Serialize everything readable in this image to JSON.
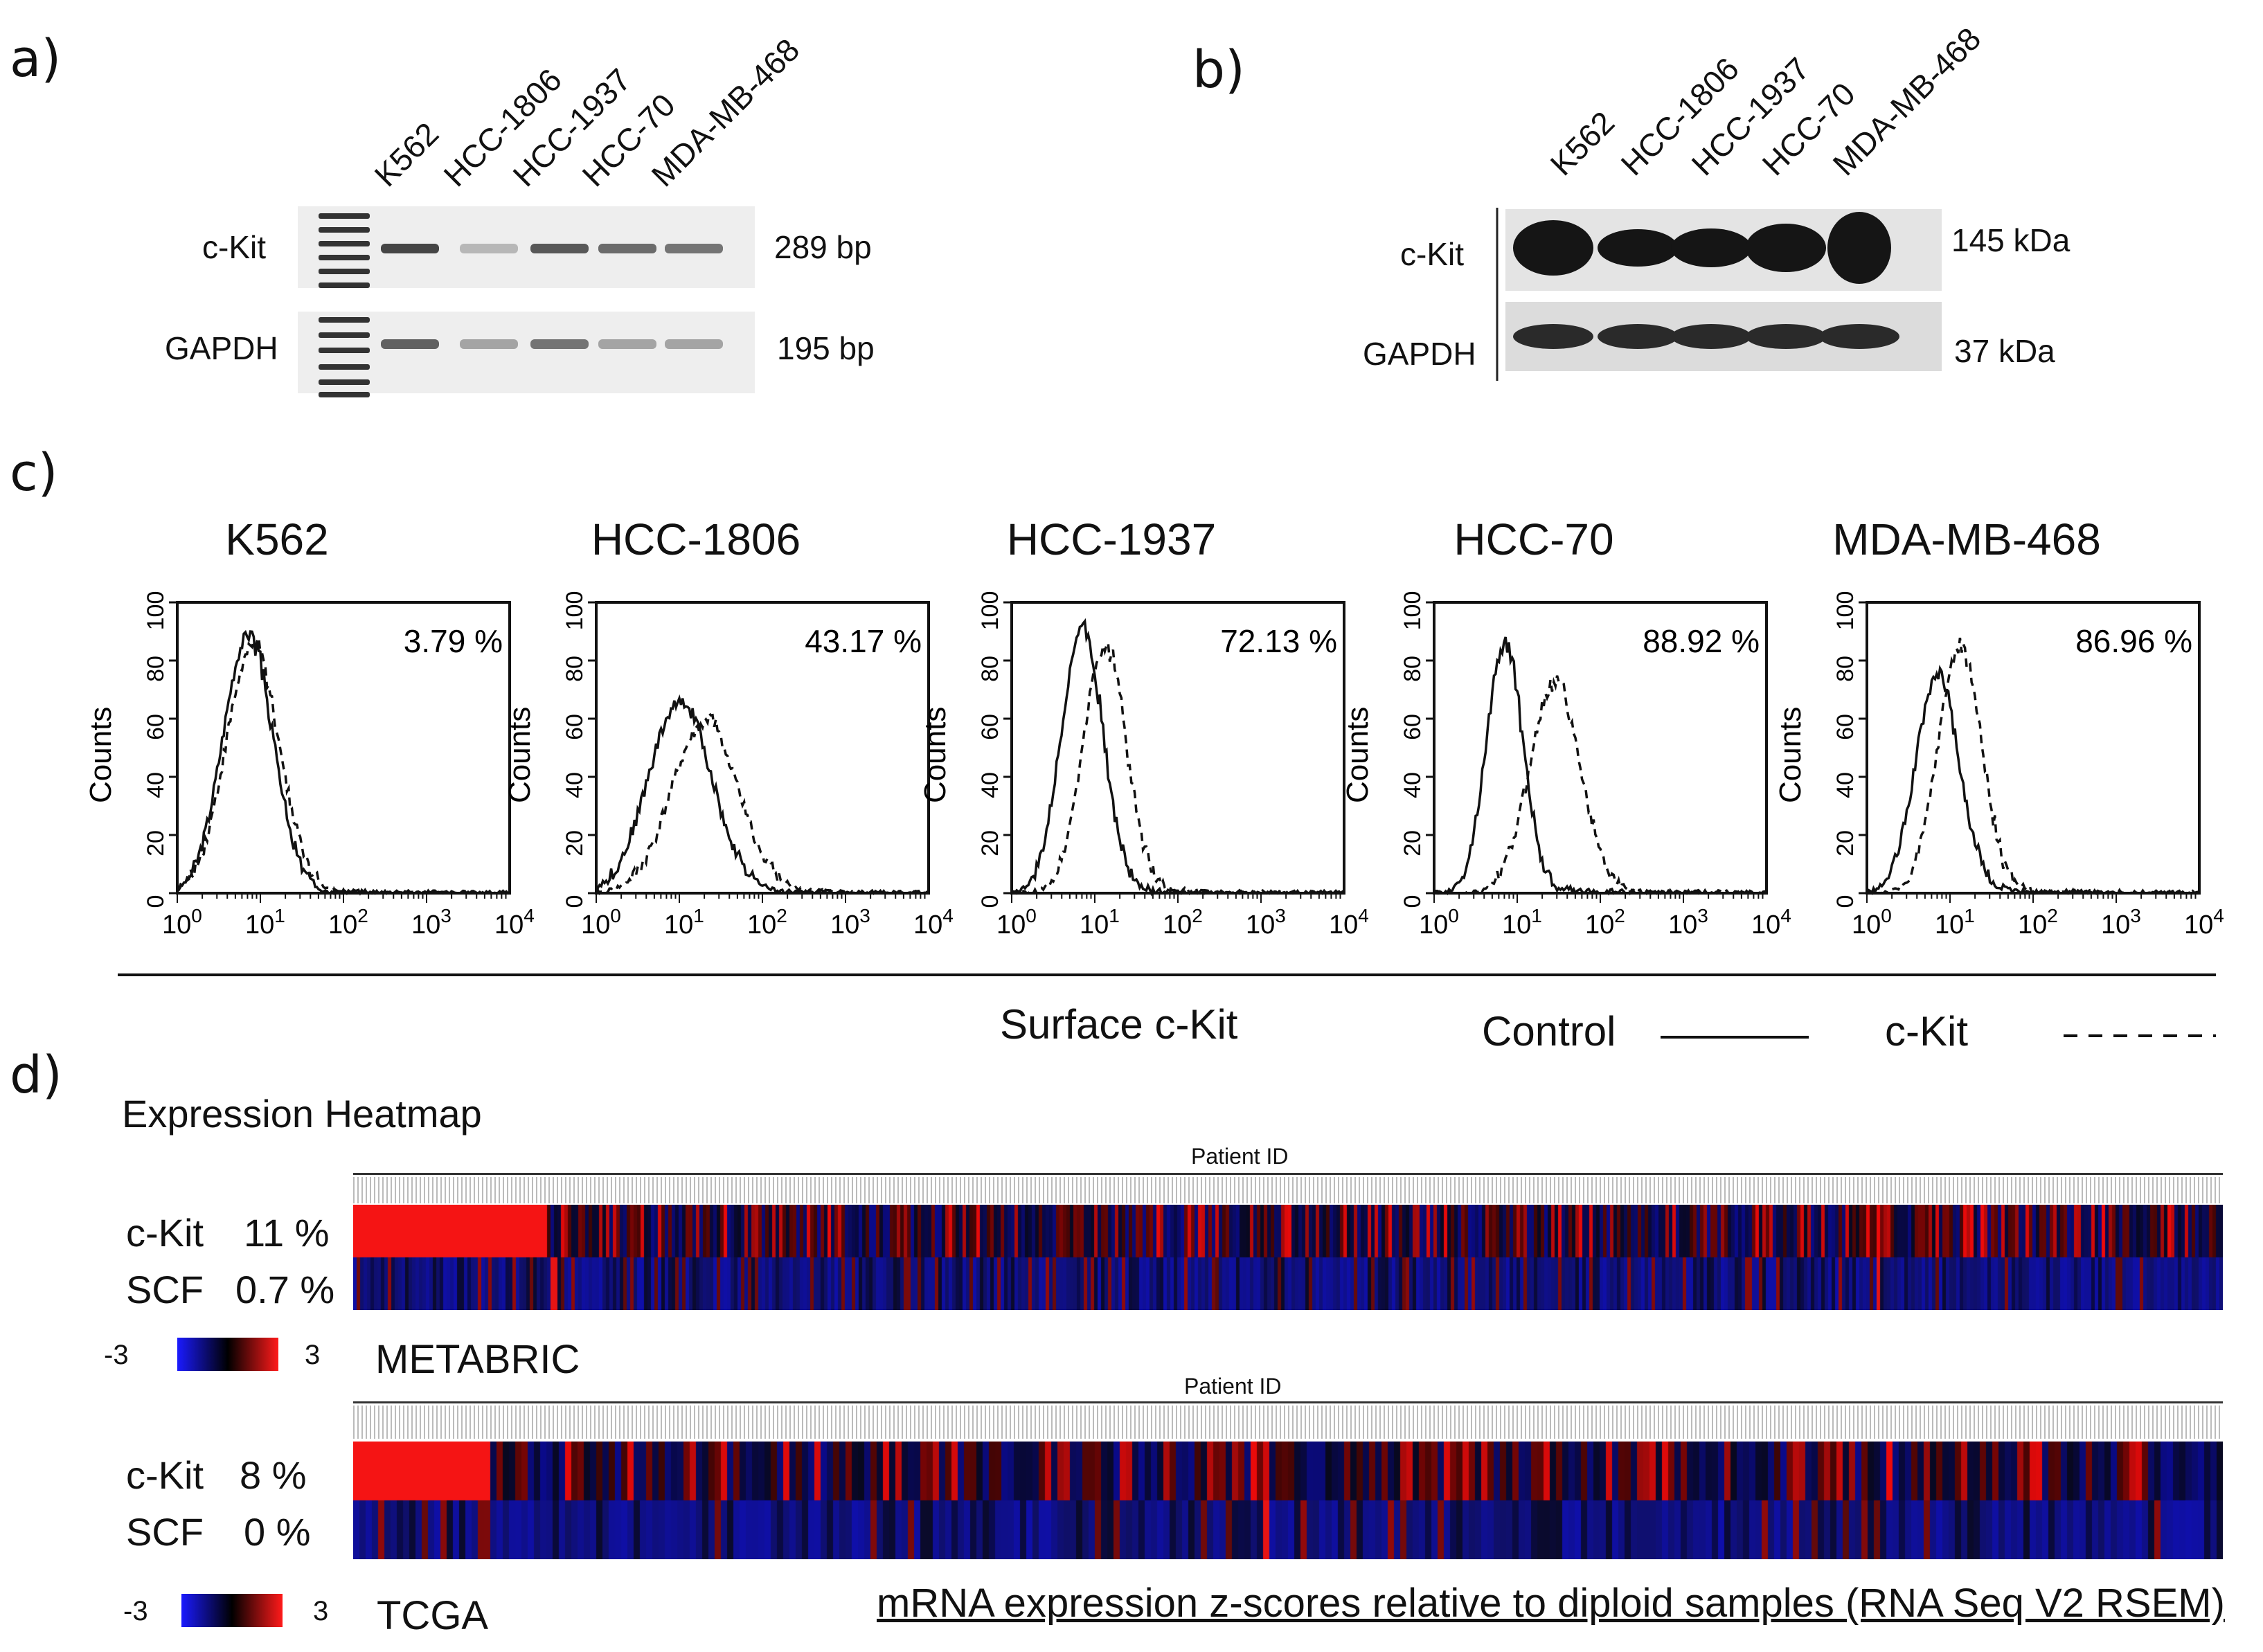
{
  "panel_a": {
    "letter": "a)",
    "lanes": [
      "K562",
      "HCC-1806",
      "HCC-1937",
      "HCC-70",
      "MDA-MB-468"
    ],
    "rows": [
      {
        "label": "c-Kit",
        "size": "289 bp",
        "band_intensity": [
          0.85,
          0.25,
          0.75,
          0.65,
          0.6
        ]
      },
      {
        "label": "GAPDH",
        "size": "195 bp",
        "band_intensity": [
          0.7,
          0.35,
          0.6,
          0.35,
          0.35
        ]
      }
    ]
  },
  "panel_b": {
    "letter": "b)",
    "lanes": [
      "K562",
      "HCC-1806",
      "HCC-1937",
      "HCC-70",
      "MDA-MB-468"
    ],
    "rows": [
      {
        "label": "c-Kit",
        "size": "145 kDa"
      },
      {
        "label": "GAPDH",
        "size": "37 kDa"
      }
    ]
  },
  "panel_c": {
    "letter": "c)",
    "xlabel": "Surface c-Kit",
    "ylabel": "Counts",
    "legend": {
      "control": "Control",
      "ckit": "c-Kit"
    },
    "x_ticks": [
      "10",
      "10",
      "10",
      "10",
      "10"
    ],
    "x_tick_exponents": [
      "0",
      "1",
      "2",
      "3",
      "4"
    ],
    "y_ticks": [
      "0",
      "20",
      "40",
      "60",
      "80",
      "100"
    ]
  },
  "panel_d": {
    "letter": "d)",
    "title": "Expression Heatmap",
    "patient_id_label": "Patient ID",
    "scale_min": "-3",
    "scale_max": "3",
    "footnote": "mRNA expression z-scores relative to diploid samples (RNA Seq V2 RSEM)",
    "metabric": {
      "name": "METABRIC",
      "ckit_label": "c-Kit",
      "ckit_pct": "11 %",
      "scf_label": "SCF",
      "scf_pct": "0.7 %"
    },
    "tcga": {
      "name": "TCGA",
      "ckit_label": "c-Kit",
      "ckit_pct": "8 %",
      "scf_label": "SCF",
      "scf_pct": "0 %"
    }
  },
  "chart_data": [
    {
      "type": "line",
      "title": "K562",
      "percent": "3.79 %",
      "xscale": "log",
      "xlim": [
        1,
        10000
      ],
      "ylim": [
        0,
        100
      ],
      "xlabel": "",
      "ylabel": "Counts",
      "series": [
        {
          "name": "Control",
          "peak_x": 7,
          "peak_y": 88,
          "width": 0.3
        },
        {
          "name": "c-Kit",
          "peak_x": 8,
          "peak_y": 84,
          "width": 0.32
        }
      ]
    },
    {
      "type": "line",
      "title": "HCC-1806",
      "percent": "43.17 %",
      "xscale": "log",
      "xlim": [
        1,
        10000
      ],
      "ylim": [
        0,
        100
      ],
      "xlabel": "",
      "ylabel": "Counts",
      "series": [
        {
          "name": "Control",
          "peak_x": 10,
          "peak_y": 65,
          "width": 0.38
        },
        {
          "name": "c-Kit",
          "peak_x": 20,
          "peak_y": 58,
          "width": 0.4
        }
      ]
    },
    {
      "type": "line",
      "title": "HCC-1937",
      "percent": "72.13 %",
      "xscale": "log",
      "xlim": [
        1,
        10000
      ],
      "ylim": [
        0,
        100
      ],
      "xlabel": "",
      "ylabel": "Counts",
      "series": [
        {
          "name": "Control",
          "peak_x": 7,
          "peak_y": 91,
          "width": 0.25
        },
        {
          "name": "c-Kit",
          "peak_x": 13,
          "peak_y": 84,
          "width": 0.26
        }
      ]
    },
    {
      "type": "line",
      "title": "HCC-70",
      "percent": "88.92 %",
      "xscale": "log",
      "xlim": [
        1,
        10000
      ],
      "ylim": [
        0,
        100
      ],
      "xlabel": "",
      "ylabel": "Counts",
      "series": [
        {
          "name": "Control",
          "peak_x": 7,
          "peak_y": 85,
          "width": 0.22
        },
        {
          "name": "c-Kit",
          "peak_x": 28,
          "peak_y": 72,
          "width": 0.3
        }
      ]
    },
    {
      "type": "line",
      "title": "MDA-MB-468",
      "percent": "86.96 %",
      "xscale": "log",
      "xlim": [
        1,
        10000
      ],
      "ylim": [
        0,
        100
      ],
      "xlabel": "",
      "ylabel": "Counts",
      "series": [
        {
          "name": "Control",
          "peak_x": 7,
          "peak_y": 74,
          "width": 0.26
        },
        {
          "name": "c-Kit",
          "peak_x": 13,
          "peak_y": 84,
          "width": 0.26
        }
      ]
    }
  ]
}
